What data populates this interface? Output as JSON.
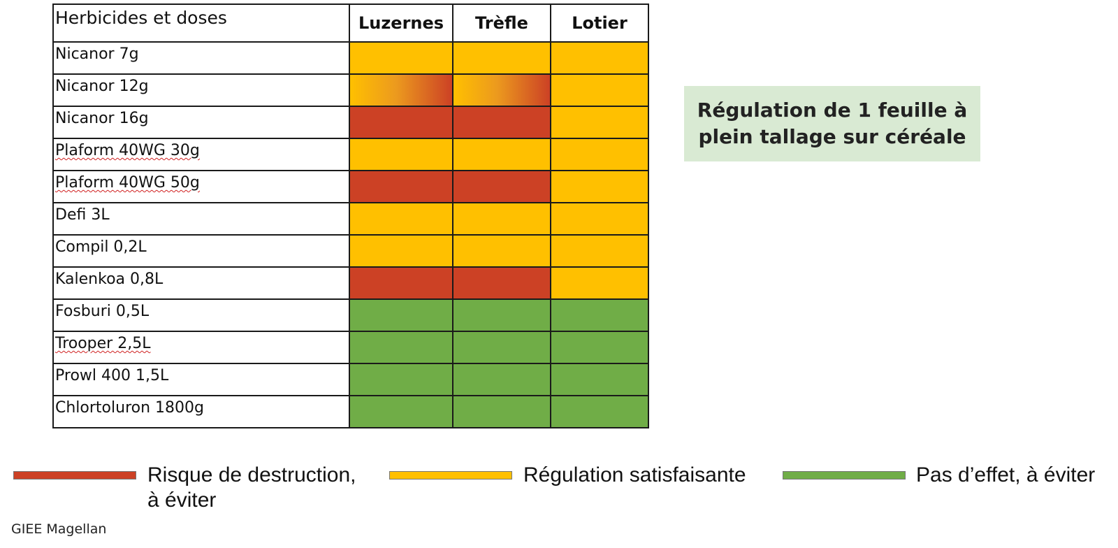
{
  "table": {
    "header": [
      "Herbicides et doses",
      "Luzernes",
      "Trèfle",
      "Lotier"
    ],
    "rows": [
      {
        "label": "Nicanor 7g",
        "cells": [
          "satisfaisant",
          "satisfaisant",
          "satisfaisant"
        ]
      },
      {
        "label": "Nicanor 12g",
        "cells": [
          "transition",
          "transition",
          "satisfaisant"
        ]
      },
      {
        "label": "Nicanor 16g",
        "cells": [
          "destruction",
          "destruction",
          "satisfaisant"
        ]
      },
      {
        "label": "Plaform 40WG 30g",
        "cells": [
          "satisfaisant",
          "satisfaisant",
          "satisfaisant"
        ]
      },
      {
        "label": "Plaform 40WG 50g",
        "cells": [
          "destruction",
          "destruction",
          "satisfaisant"
        ]
      },
      {
        "label": "Defi 3L",
        "cells": [
          "satisfaisant",
          "satisfaisant",
          "satisfaisant"
        ]
      },
      {
        "label": "Compil 0,2L",
        "cells": [
          "satisfaisant",
          "satisfaisant",
          "satisfaisant"
        ]
      },
      {
        "label": "Kalenkoa 0,8L",
        "cells": [
          "destruction",
          "destruction",
          "satisfaisant"
        ]
      },
      {
        "label": "Fosburi 0,5L",
        "cells": [
          "sans-effet",
          "sans-effet",
          "sans-effet"
        ]
      },
      {
        "label": "Trooper 2,5L",
        "cells": [
          "sans-effet",
          "sans-effet",
          "sans-effet"
        ]
      },
      {
        "label": "Prowl 400 1,5L",
        "cells": [
          "sans-effet",
          "sans-effet",
          "sans-effet"
        ]
      },
      {
        "label": "Chlortoluron 1800g",
        "cells": [
          "sans-effet",
          "sans-effet",
          "sans-effet"
        ]
      }
    ]
  },
  "colors": {
    "destruction": "#cc4125",
    "satisfaisant": "#ffc000",
    "sans-effet": "#70ad47"
  },
  "box": {
    "line1": "Régulation de 1 feuille à",
    "line2": "plein tallage sur céréale"
  },
  "legend": {
    "destruction_line1": "Risque de destruction,",
    "destruction_line2": "à éviter",
    "satisfaisant": "Régulation satisfaisante",
    "sans_effet": "Pas d’effet, à éviter"
  },
  "credit": "GIEE Magellan"
}
